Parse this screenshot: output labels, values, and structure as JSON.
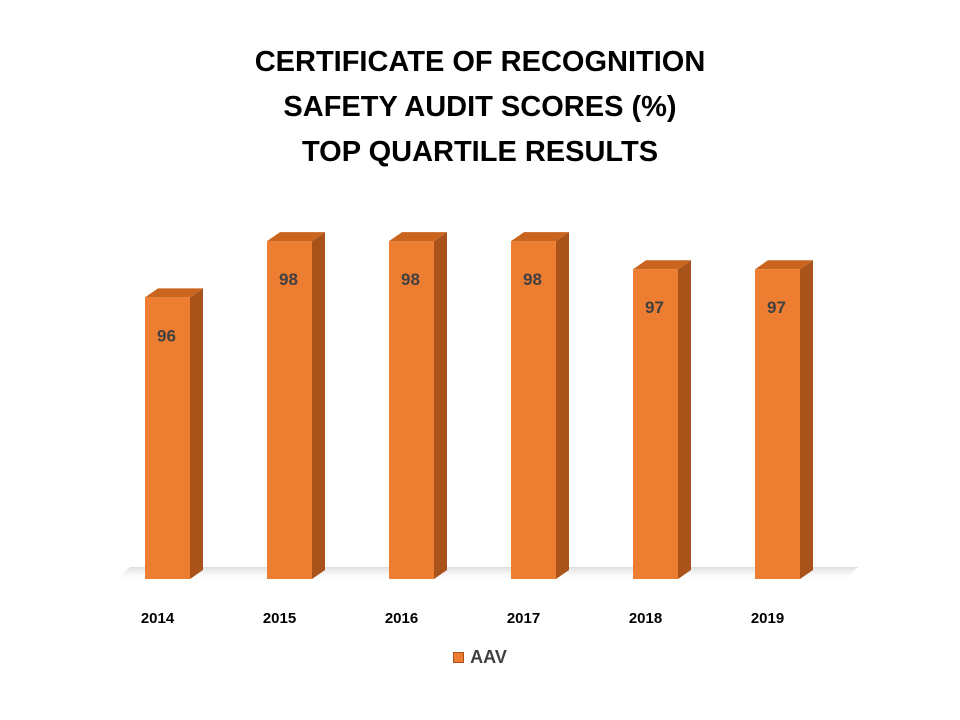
{
  "chart_data": {
    "type": "bar",
    "title": [
      "CERTIFICATE OF RECOGNITION",
      "SAFETY AUDIT SCORES (%)",
      "TOP QUARTILE RESULTS"
    ],
    "categories": [
      "2014",
      "2015",
      "2016",
      "2017",
      "2018",
      "2019"
    ],
    "series": [
      {
        "name": "AAV",
        "values": [
          96,
          98,
          98,
          98,
          97,
          97
        ]
      }
    ],
    "ylim": [
      86,
      98.5
    ],
    "style": "3d-column",
    "grid": false,
    "y_axis_visible": false,
    "legend_position": "bottom",
    "data_labels": true
  },
  "colors": {
    "bar_front": "#ED7D31",
    "bar_side": "#A9531B",
    "bar_top": "#C9651F",
    "label_text": "#404040"
  }
}
